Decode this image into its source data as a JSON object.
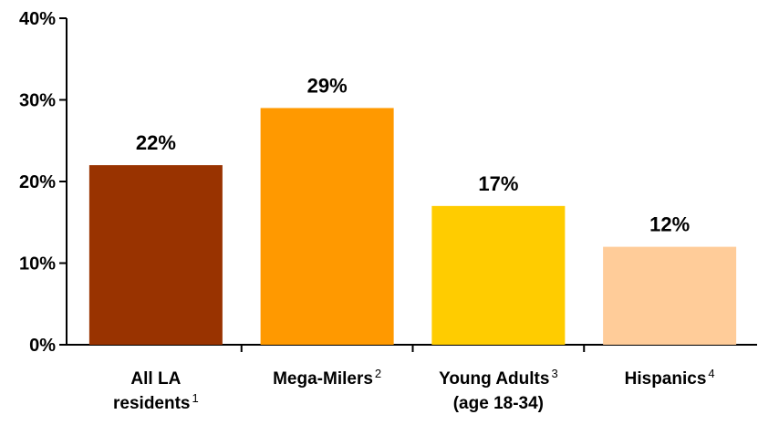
{
  "chart_data": {
    "type": "bar",
    "title": "",
    "xlabel": "",
    "ylabel": "",
    "ylim": [
      0,
      40
    ],
    "yticks": [
      "0%",
      "10%",
      "20%",
      "30%",
      "40%"
    ],
    "ytick_values": [
      0,
      10,
      20,
      30,
      40
    ],
    "grid": false,
    "legend": "none",
    "categories": [
      {
        "lines": [
          "All LA",
          "residents"
        ],
        "footnote": "1"
      },
      {
        "lines": [
          "Mega-Milers"
        ],
        "footnote": "2"
      },
      {
        "lines": [
          "Young Adults",
          "(age 18-34)"
        ],
        "footnote": "3"
      },
      {
        "lines": [
          "Hispanics"
        ],
        "footnote": "4"
      }
    ],
    "values": [
      22,
      29,
      17,
      12
    ],
    "value_labels": [
      "22%",
      "29%",
      "17%",
      "12%"
    ],
    "colors": [
      "#993300",
      "#FF9900",
      "#FFCC00",
      "#FFCC99"
    ]
  }
}
